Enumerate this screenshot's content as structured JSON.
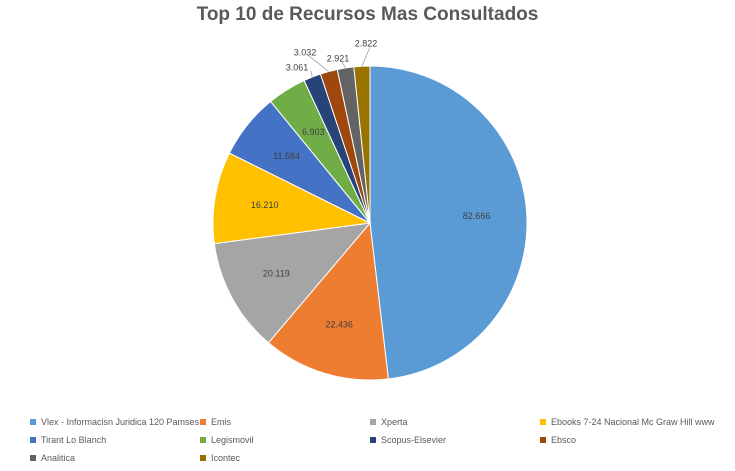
{
  "chart_data": {
    "type": "pie",
    "title": "Top 10 de Recursos Mas Consultados",
    "categories": [
      "Vlex - Informacisn Juridica 120 Pamses",
      "Emis",
      "Xperta",
      "Ebooks 7-24 Nacional Mc Graw Hill www",
      "Tirant Lo Blanch",
      "Legismovil",
      "Scopus-Elsevier",
      "Ebsco",
      "Analitica",
      "Icontec"
    ],
    "values": [
      82666,
      22436,
      20119,
      16210,
      11584,
      6903,
      3061,
      3032,
      2921,
      2822
    ],
    "value_labels": [
      "82.666",
      "22.436",
      "20.119",
      "16.210",
      "11.584",
      "6.903",
      "3.061",
      "3.032",
      "2.921",
      "2.822"
    ],
    "colors": [
      "#5B9BD5",
      "#ED7D31",
      "#A5A5A5",
      "#FFC000",
      "#4472C4",
      "#70AD47",
      "#264478",
      "#9E480E",
      "#636363",
      "#997300"
    ],
    "legend_position": "bottom"
  }
}
